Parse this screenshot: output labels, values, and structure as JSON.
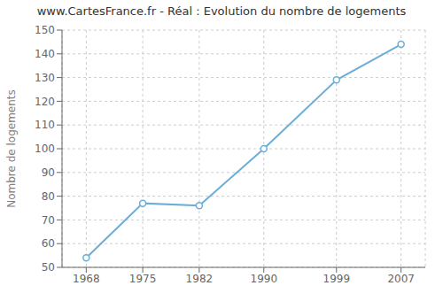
{
  "chart_data": {
    "type": "line",
    "title": "www.CartesFrance.fr - Réal : Evolution du nombre de logements",
    "ylabel": "Nombre de logements",
    "x": [
      1968,
      1975,
      1982,
      1990,
      1999,
      2007
    ],
    "values": [
      54,
      77,
      76,
      100,
      129,
      144
    ],
    "color": "#6baed6",
    "marker": "circle",
    "xlim": [
      1965,
      2010
    ],
    "ylim": [
      50,
      150
    ],
    "xticks": [
      1968,
      1975,
      1982,
      1990,
      1999,
      2007
    ],
    "yticks": [
      50,
      60,
      70,
      80,
      90,
      100,
      110,
      120,
      130,
      140,
      150
    ],
    "grid": true
  }
}
